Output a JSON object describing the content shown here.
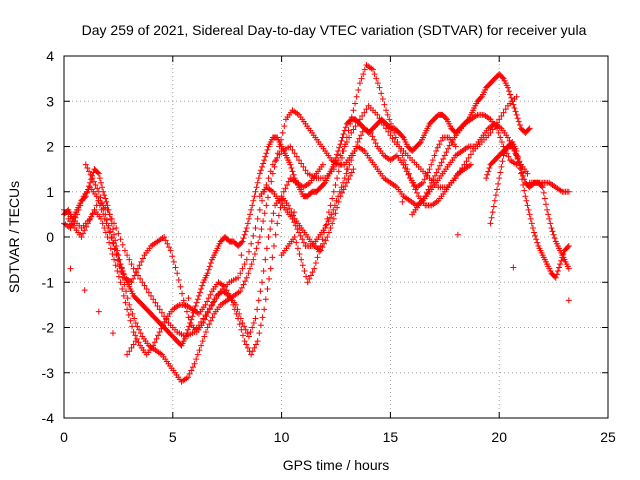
{
  "chart_data": {
    "type": "scatter",
    "title": "Day 259 of 2021, Sidereal Day-to-day VTEC variation (SDTVAR) for receiver yula",
    "xlabel": "GPS time / hours",
    "ylabel": "SDTVAR / TECUs",
    "xlim": [
      0,
      25
    ],
    "ylim": [
      -4,
      4
    ],
    "xticks": [
      "0",
      "5",
      "10",
      "15",
      "20",
      "25"
    ],
    "yticks": [
      "-4",
      "-3",
      "-2",
      "-1",
      "0",
      "1",
      "2",
      "3",
      "4"
    ],
    "grid": true,
    "marker": "+",
    "colors": {
      "series": "#ff0000",
      "grid": "#a0a0a0",
      "axes": "#000000"
    },
    "series": [
      {
        "x": [
          0.0,
          0.2,
          0.4,
          0.6,
          0.8,
          1.0,
          1.2,
          1.4,
          1.6,
          1.8,
          2.0,
          2.2,
          2.4,
          2.6,
          2.8,
          3.0,
          3.2,
          3.4,
          3.6,
          3.8,
          4.0,
          4.2,
          4.4,
          4.6,
          4.8,
          5.0,
          5.2,
          5.4,
          5.6,
          5.8,
          6.0,
          6.2,
          6.4,
          6.6,
          6.8,
          7.0,
          7.2,
          7.4,
          7.6,
          7.8,
          8.0,
          8.2,
          8.4,
          8.6,
          8.8,
          9.0,
          9.2,
          9.4,
          9.6,
          9.8,
          10.0,
          10.2,
          10.4,
          10.6,
          10.8,
          11.0,
          11.2,
          11.4,
          11.6,
          11.8,
          12.0,
          12.2,
          12.4,
          12.6,
          12.8,
          13.0,
          13.2,
          13.4,
          13.6,
          13.8,
          14.0,
          14.2,
          14.4,
          14.6,
          14.8,
          15.0,
          15.2,
          15.4,
          15.6,
          15.8,
          16.0,
          16.2,
          16.4,
          16.6,
          16.8,
          17.0,
          17.2,
          17.4,
          17.6,
          17.8,
          18.0,
          18.2,
          18.4,
          18.6,
          18.8,
          19.0,
          19.2,
          19.4,
          19.6,
          19.8,
          20.0,
          20.2,
          20.4,
          20.6,
          20.8,
          21.0,
          21.2,
          21.4
        ],
        "y": [
          0.5,
          0.6,
          0.4,
          0.6,
          0.8,
          0.9,
          1.2,
          1.5,
          1.4,
          1.0,
          0.7,
          0.3,
          -0.2,
          -0.6,
          -0.9,
          -1.1,
          -1.3,
          -1.4,
          -1.5,
          -1.6,
          -1.7,
          -1.8,
          -1.9,
          -2.0,
          -2.1,
          -2.2,
          -2.3,
          -2.4,
          -2.2,
          -1.9,
          -1.6,
          -1.3,
          -1.0,
          -0.8,
          -0.5,
          -0.3,
          -0.1,
          0.0,
          -0.1,
          -0.1,
          -0.2,
          -0.1,
          0.2,
          0.6,
          1.0,
          1.4,
          1.7,
          2.0,
          2.2,
          2.2,
          2.0,
          1.8,
          1.6,
          1.3,
          1.1,
          0.9,
          0.9,
          1.0,
          1.0,
          1.1,
          1.2,
          1.4,
          1.6,
          1.9,
          2.2,
          2.5,
          2.6,
          2.6,
          2.5,
          2.4,
          2.3,
          2.4,
          2.5,
          2.6,
          2.5,
          2.4,
          2.4,
          2.3,
          2.2,
          2.0,
          1.9,
          2.0,
          2.1,
          2.3,
          2.5,
          2.6,
          2.7,
          2.7,
          2.6,
          2.4,
          2.3,
          2.4,
          2.5,
          2.6,
          2.8,
          3.0,
          3.1,
          3.3,
          3.4,
          3.5,
          3.6,
          3.5,
          3.3,
          3.0,
          2.7,
          2.4,
          2.3,
          2.4
        ]
      },
      {
        "x": [
          0.0,
          0.3,
          0.6,
          0.9,
          1.2,
          1.5,
          1.8,
          2.1,
          2.4,
          2.7,
          3.0,
          3.3,
          3.6,
          3.9,
          4.2,
          4.5,
          4.8,
          5.1,
          5.4,
          5.7,
          6.0,
          6.3,
          6.6,
          6.9,
          7.2,
          7.5,
          7.8,
          8.1,
          8.4,
          8.7,
          9.0,
          9.3,
          9.6,
          9.9,
          10.2,
          10.5,
          10.8,
          11.1,
          11.4,
          11.7,
          12.0,
          12.3,
          12.6,
          12.9,
          13.2,
          13.5,
          13.8,
          14.1,
          14.4,
          14.7,
          15.0,
          15.3,
          15.6,
          15.9,
          16.2,
          16.5,
          16.8,
          17.1,
          17.4,
          17.7,
          18.0,
          18.3,
          18.6,
          18.9,
          19.2,
          19.5,
          19.8,
          20.1,
          20.4,
          20.7,
          21.0,
          21.3
        ],
        "y": [
          0.3,
          0.2,
          0.5,
          0.9,
          1.1,
          0.9,
          0.5,
          0.1,
          -0.4,
          -0.9,
          -1.5,
          -1.9,
          -2.2,
          -2.4,
          -2.5,
          -2.6,
          -2.8,
          -3.0,
          -3.2,
          -3.1,
          -2.8,
          -2.4,
          -2.0,
          -1.7,
          -1.5,
          -1.4,
          -1.3,
          -1.2,
          -0.9,
          -0.5,
          0.0,
          0.7,
          1.4,
          2.0,
          2.6,
          2.8,
          2.7,
          2.5,
          2.3,
          2.1,
          1.9,
          1.7,
          1.6,
          1.6,
          1.8,
          2.0,
          1.9,
          1.7,
          1.5,
          1.3,
          1.2,
          1.1,
          0.9,
          0.8,
          0.7,
          0.8,
          1.0,
          1.2,
          1.4,
          1.6,
          1.8,
          1.9,
          2.0,
          2.0,
          2.2,
          2.4,
          2.5,
          2.4,
          2.2,
          1.9,
          1.6,
          1.4
        ]
      },
      {
        "x": [
          0.0,
          0.4,
          0.8,
          1.2,
          1.6,
          2.0,
          2.4,
          2.8,
          3.2,
          3.6,
          4.0,
          4.4,
          4.8,
          5.2,
          5.6,
          6.0,
          6.4,
          6.8,
          7.2,
          7.6,
          8.0,
          8.4,
          8.8,
          9.2,
          9.6,
          10.0,
          10.4,
          10.8,
          11.2,
          11.6,
          12.0,
          12.4,
          12.8,
          13.2,
          13.6,
          14.0,
          14.4,
          14.8,
          15.2,
          15.6,
          16.0,
          16.4,
          16.8,
          17.2,
          17.6,
          18.0,
          18.4,
          18.8,
          19.2,
          19.6,
          20.0,
          20.4,
          20.8
        ],
        "y": [
          0.6,
          0.4,
          0.2,
          0.4,
          0.8,
          0.6,
          0.2,
          -0.3,
          -0.7,
          -1.0,
          -1.3,
          -1.6,
          -1.9,
          -2.1,
          -2.2,
          -2.1,
          -1.8,
          -1.5,
          -1.2,
          -1.0,
          -0.9,
          -0.5,
          0.2,
          1.0,
          1.6,
          1.9,
          2.0,
          1.7,
          1.4,
          1.3,
          1.3,
          1.5,
          1.9,
          2.3,
          2.6,
          2.9,
          2.7,
          2.4,
          2.1,
          1.9,
          1.7,
          1.5,
          1.3,
          1.1,
          1.1,
          1.3,
          1.6,
          1.9,
          2.1,
          2.3,
          2.6,
          2.9,
          3.1
        ]
      },
      {
        "x": [
          0.2,
          0.5,
          0.8,
          1.1,
          1.4,
          1.7,
          2.0,
          2.3,
          2.6,
          2.9,
          3.2,
          3.5,
          3.8,
          4.1,
          4.4,
          4.7,
          5.0,
          5.3,
          5.6,
          5.9,
          6.2,
          6.5,
          6.8,
          7.1,
          7.4,
          7.7,
          8.0,
          8.3,
          8.6,
          8.9,
          9.2,
          9.5,
          9.8,
          10.1,
          10.4,
          10.7,
          11.0,
          11.3,
          11.6,
          11.9
        ],
        "y": [
          0.4,
          0.2,
          0.0,
          0.3,
          0.6,
          0.4,
          0.0,
          -0.5,
          -1.0,
          -1.6,
          -2.1,
          -2.4,
          -2.6,
          -2.4,
          -2.1,
          -1.8,
          -1.6,
          -1.5,
          -1.5,
          -1.6,
          -1.7,
          -1.5,
          -1.2,
          -1.0,
          -1.1,
          -1.4,
          -1.8,
          -2.3,
          -2.6,
          -2.3,
          -1.6,
          -0.7,
          0.3,
          1.0,
          1.3,
          1.2,
          1.1,
          1.2,
          1.4,
          1.6
        ]
      },
      {
        "x": [
          1.0,
          1.3,
          1.6,
          1.9,
          2.2,
          2.5,
          2.8,
          3.1,
          3.4,
          3.7,
          4.0,
          4.3,
          4.6,
          4.9,
          5.2,
          5.5,
          5.8,
          6.1,
          6.4,
          6.7,
          7.0,
          7.3,
          7.6,
          7.9,
          8.2,
          8.5,
          8.8,
          9.1,
          9.4,
          9.7,
          10.0,
          10.3,
          10.6,
          10.9,
          11.2,
          11.5,
          11.8,
          12.1,
          12.4,
          12.7,
          13.0,
          13.3
        ],
        "y": [
          1.6,
          1.3,
          1.0,
          0.5,
          0.0,
          -0.5,
          -0.9,
          -1.0,
          -0.7,
          -0.4,
          -0.2,
          -0.1,
          0.0,
          -0.3,
          -0.8,
          -1.4,
          -1.9,
          -2.1,
          -1.9,
          -1.6,
          -1.3,
          -1.2,
          -1.3,
          -1.5,
          -1.9,
          -2.2,
          -1.8,
          -1.0,
          0.0,
          0.7,
          0.9,
          0.7,
          0.4,
          0.2,
          0.0,
          -0.2,
          -0.3,
          0.0,
          0.4,
          0.9,
          1.2,
          1.5
        ]
      },
      {
        "x": [
          9.0,
          9.3,
          9.6,
          9.9,
          10.2,
          10.5,
          10.8,
          11.1,
          11.4,
          11.7,
          12.0,
          12.3,
          12.6,
          12.9,
          13.2,
          13.5,
          13.8,
          14.1,
          14.4,
          14.7,
          15.0,
          15.3,
          15.6,
          15.9,
          16.2,
          16.5,
          16.8,
          17.1,
          17.4,
          17.7,
          18.0
        ],
        "y": [
          0.9,
          1.1,
          1.0,
          0.8,
          0.6,
          0.4,
          0.1,
          -0.2,
          -0.2,
          0.0,
          0.2,
          0.5,
          0.9,
          1.3,
          1.7,
          2.1,
          2.4,
          2.3,
          2.0,
          1.8,
          1.7,
          1.8,
          1.6,
          1.3,
          1.1,
          1.2,
          1.5,
          1.9,
          2.2,
          2.2,
          2.0
        ]
      },
      {
        "x": [
          10.0,
          10.3,
          10.6,
          10.9,
          11.2,
          11.5,
          11.8,
          12.1,
          12.4,
          12.7,
          13.0,
          13.3,
          13.6,
          13.9,
          14.2,
          14.5,
          14.8,
          15.1,
          15.4,
          15.7,
          16.0,
          16.3,
          16.6,
          16.9,
          17.2,
          17.5,
          17.8,
          18.1,
          18.4,
          18.7
        ],
        "y": [
          -0.4,
          -0.2,
          0.0,
          -0.5,
          -1.0,
          -0.7,
          -0.2,
          0.4,
          1.0,
          1.6,
          2.2,
          2.8,
          3.4,
          3.8,
          3.7,
          3.3,
          2.8,
          2.4,
          2.0,
          1.6,
          1.2,
          0.9,
          0.7,
          0.7,
          0.8,
          1.0,
          1.2,
          1.4,
          1.5,
          1.6
        ]
      },
      {
        "x": [
          16.0,
          16.3,
          16.6,
          16.9,
          17.2,
          17.5,
          17.8,
          18.1,
          18.4,
          18.7,
          19.0,
          19.3,
          19.6,
          19.9,
          20.2,
          20.5,
          20.8
        ],
        "y": [
          0.5,
          0.7,
          0.9,
          1.2,
          1.5,
          1.8,
          2.1,
          2.3,
          2.5,
          2.6,
          2.7,
          2.7,
          2.6,
          2.4,
          2.0,
          1.7,
          1.6
        ]
      },
      {
        "x": [
          19.4,
          19.6,
          19.8,
          20.0,
          20.2,
          20.4,
          20.6,
          20.8,
          21.0,
          21.2,
          21.4,
          21.6,
          21.8,
          22.0,
          22.2,
          22.4,
          22.6,
          22.8,
          23.0,
          23.2
        ],
        "y": [
          1.3,
          1.6,
          1.7,
          1.8,
          1.9,
          2.0,
          2.1,
          1.9,
          1.4,
          0.9,
          0.5,
          0.1,
          -0.2,
          -0.4,
          -0.6,
          -0.8,
          -0.9,
          -0.6,
          -0.3,
          -0.2
        ]
      },
      {
        "x": [
          19.6,
          19.8,
          20.0,
          20.2,
          20.4,
          20.6,
          20.8,
          21.0,
          21.2,
          21.4,
          21.6,
          21.8,
          22.0,
          22.2,
          22.4,
          22.6,
          22.8,
          23.0,
          23.2
        ],
        "y": [
          0.3,
          0.8,
          1.3,
          1.8,
          2.0,
          2.0,
          1.8,
          1.5,
          1.2,
          1.1,
          1.2,
          1.2,
          1.1,
          0.6,
          0.2,
          -0.1,
          -0.3,
          -0.5,
          -0.7
        ]
      },
      {
        "x": [
          21.4,
          21.7,
          22.0,
          22.3,
          22.6,
          22.9,
          23.2
        ],
        "y": [
          1.2,
          1.2,
          1.2,
          1.2,
          1.1,
          1.0,
          1.0
        ]
      },
      {
        "x": [
          0.3,
          2.9,
          3.3,
          13.0,
          23.2
        ],
        "y": [
          -0.7,
          -2.6,
          -2.3,
          1.5,
          -1.4
        ]
      }
    ]
  }
}
